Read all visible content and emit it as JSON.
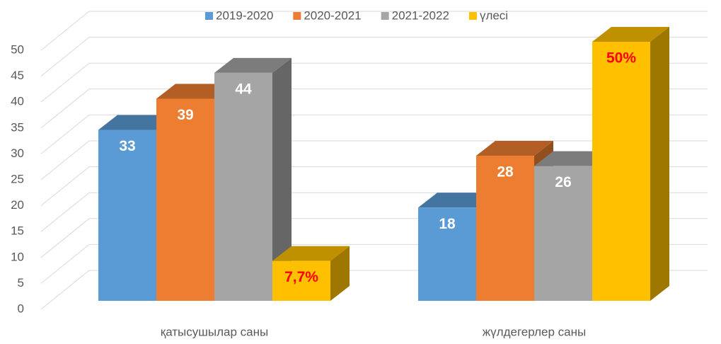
{
  "chart_data": {
    "type": "bar3d",
    "categories": [
      "қатысушылар саны",
      "жүлдегерлер саны"
    ],
    "series": [
      {
        "name": "2019-2020",
        "color": "#5b9bd5",
        "label_color": "#ffffff",
        "values": [
          33,
          18
        ]
      },
      {
        "name": "2020-2021",
        "color": "#ed7d31",
        "label_color": "#ffffff",
        "values": [
          39,
          28
        ]
      },
      {
        "name": "2021-2022",
        "color": "#a5a5a5",
        "label_color": "#ffffff",
        "values": [
          44,
          26
        ]
      },
      {
        "name": "үлесі",
        "color": "#ffc000",
        "label_color": "#ff0000",
        "values": [
          7.7,
          50
        ],
        "value_labels": [
          "7,7%",
          "50%"
        ]
      }
    ],
    "ylim": [
      0,
      50
    ],
    "yticks": [
      0,
      5,
      10,
      15,
      20,
      25,
      30,
      35,
      40,
      45,
      50
    ],
    "grid": true,
    "legend": "top"
  }
}
